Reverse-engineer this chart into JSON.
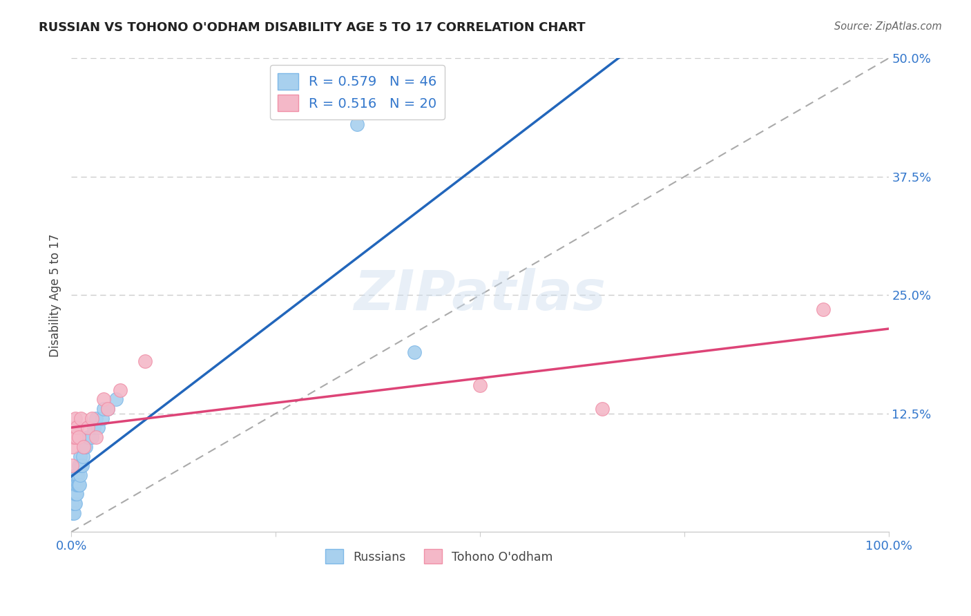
{
  "title": "RUSSIAN VS TOHONO O'ODHAM DISABILITY AGE 5 TO 17 CORRELATION CHART",
  "source": "Source: ZipAtlas.com",
  "ylabel": "Disability Age 5 to 17",
  "xlim": [
    0.0,
    1.0
  ],
  "ylim": [
    0.0,
    0.5
  ],
  "russian_R": 0.579,
  "russian_N": 46,
  "tohono_R": 0.516,
  "tohono_N": 20,
  "russian_color": "#A8D0EE",
  "russian_edge_color": "#7EB8E8",
  "tohono_color": "#F4B8C8",
  "tohono_edge_color": "#F090A8",
  "russian_line_color": "#2266BB",
  "tohono_line_color": "#DD4477",
  "ref_line_color": "#AAAAAA",
  "background_color": "#FFFFFF",
  "grid_color": "#CCCCCC",
  "tick_color": "#3377CC",
  "label_color": "#444444",
  "title_color": "#222222",
  "russian_x": [
    0.001,
    0.002,
    0.002,
    0.003,
    0.003,
    0.003,
    0.003,
    0.004,
    0.004,
    0.004,
    0.005,
    0.005,
    0.005,
    0.005,
    0.006,
    0.006,
    0.006,
    0.007,
    0.007,
    0.007,
    0.008,
    0.008,
    0.009,
    0.009,
    0.01,
    0.01,
    0.011,
    0.011,
    0.012,
    0.013,
    0.014,
    0.015,
    0.016,
    0.018,
    0.02,
    0.022,
    0.025,
    0.028,
    0.03,
    0.033,
    0.038,
    0.04,
    0.045,
    0.055,
    0.35,
    0.42
  ],
  "russian_y": [
    0.03,
    0.02,
    0.04,
    0.02,
    0.03,
    0.04,
    0.05,
    0.03,
    0.04,
    0.05,
    0.03,
    0.04,
    0.05,
    0.06,
    0.04,
    0.05,
    0.06,
    0.04,
    0.05,
    0.06,
    0.05,
    0.06,
    0.05,
    0.07,
    0.05,
    0.07,
    0.06,
    0.08,
    0.07,
    0.07,
    0.08,
    0.09,
    0.09,
    0.09,
    0.1,
    0.1,
    0.1,
    0.11,
    0.12,
    0.11,
    0.12,
    0.13,
    0.13,
    0.14,
    0.43,
    0.19
  ],
  "tohono_x": [
    0.001,
    0.002,
    0.003,
    0.004,
    0.005,
    0.006,
    0.007,
    0.009,
    0.012,
    0.015,
    0.02,
    0.025,
    0.03,
    0.04,
    0.045,
    0.06,
    0.09,
    0.5,
    0.65,
    0.92
  ],
  "tohono_y": [
    0.07,
    0.09,
    0.1,
    0.11,
    0.12,
    0.1,
    0.11,
    0.1,
    0.12,
    0.09,
    0.11,
    0.12,
    0.1,
    0.14,
    0.13,
    0.15,
    0.18,
    0.155,
    0.13,
    0.235
  ]
}
